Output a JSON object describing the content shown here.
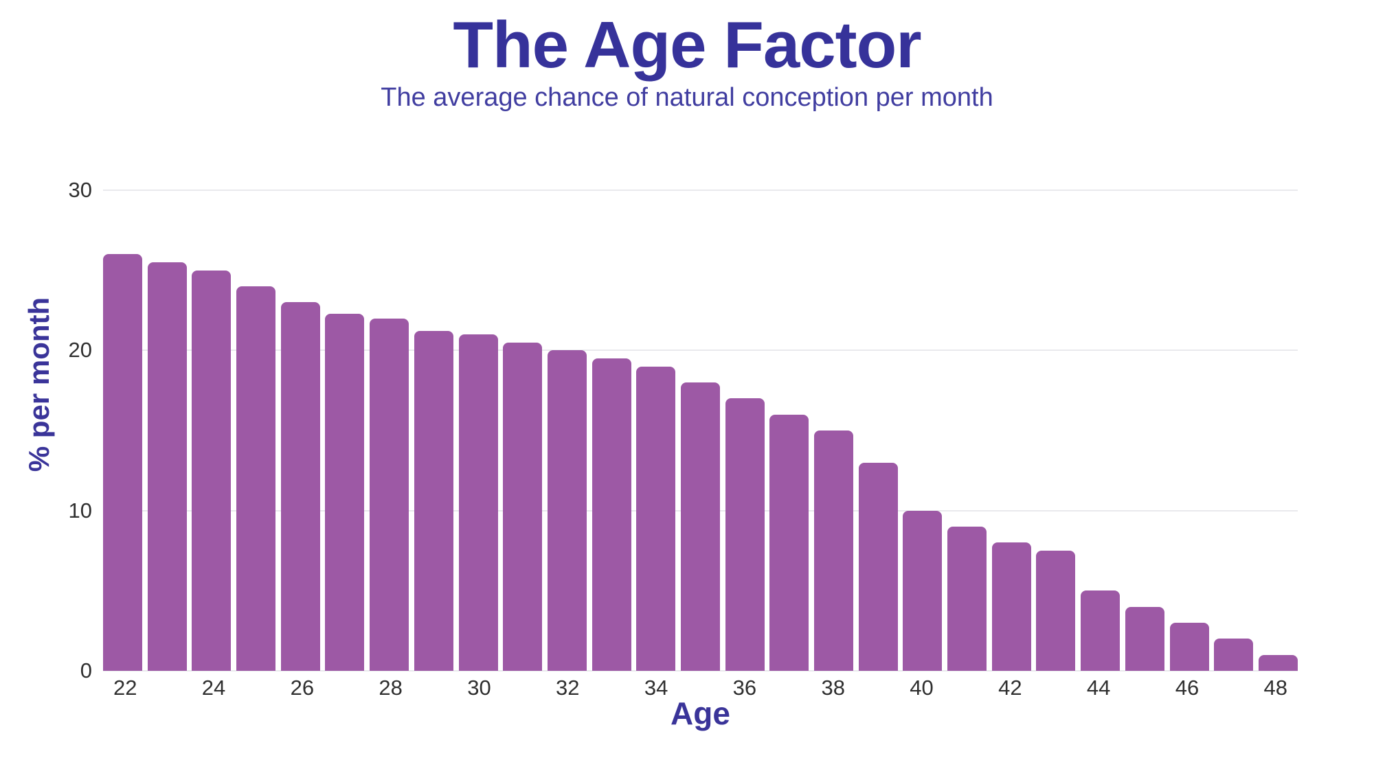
{
  "header": {
    "title": "The Age Factor",
    "subtitle": "The average chance of natural conception per month"
  },
  "chart_data": {
    "type": "bar",
    "title": "The Age Factor",
    "subtitle": "The average chance of natural conception per month",
    "xlabel": "Age",
    "ylabel": "% per month",
    "x": [
      22,
      23,
      24,
      25,
      26,
      27,
      28,
      29,
      30,
      31,
      32,
      33,
      34,
      35,
      36,
      37,
      38,
      39,
      40,
      41,
      42,
      43,
      44,
      45,
      46,
      47,
      48
    ],
    "values": [
      26,
      25.5,
      25,
      24,
      23,
      22.3,
      22,
      21.2,
      21,
      20.5,
      20,
      19.5,
      19,
      18,
      17,
      16,
      15,
      13,
      10,
      9,
      8,
      7.5,
      5,
      4,
      3,
      2,
      1
    ],
    "ylim": [
      0,
      30
    ],
    "yticks": [
      0,
      10,
      20,
      30
    ],
    "xticks": [
      22,
      24,
      26,
      28,
      30,
      32,
      34,
      36,
      38,
      40,
      42,
      44,
      46,
      48
    ],
    "grid": "horizontal-light",
    "legend": "none",
    "colors": {
      "bar": "#9d59a5",
      "title": "#36329a",
      "subtitle": "#403da0",
      "axis_title": "#3a3499",
      "tick_text": "#2f2f2f",
      "gridline": "#e9e9ed",
      "background": "#ffffff"
    }
  }
}
